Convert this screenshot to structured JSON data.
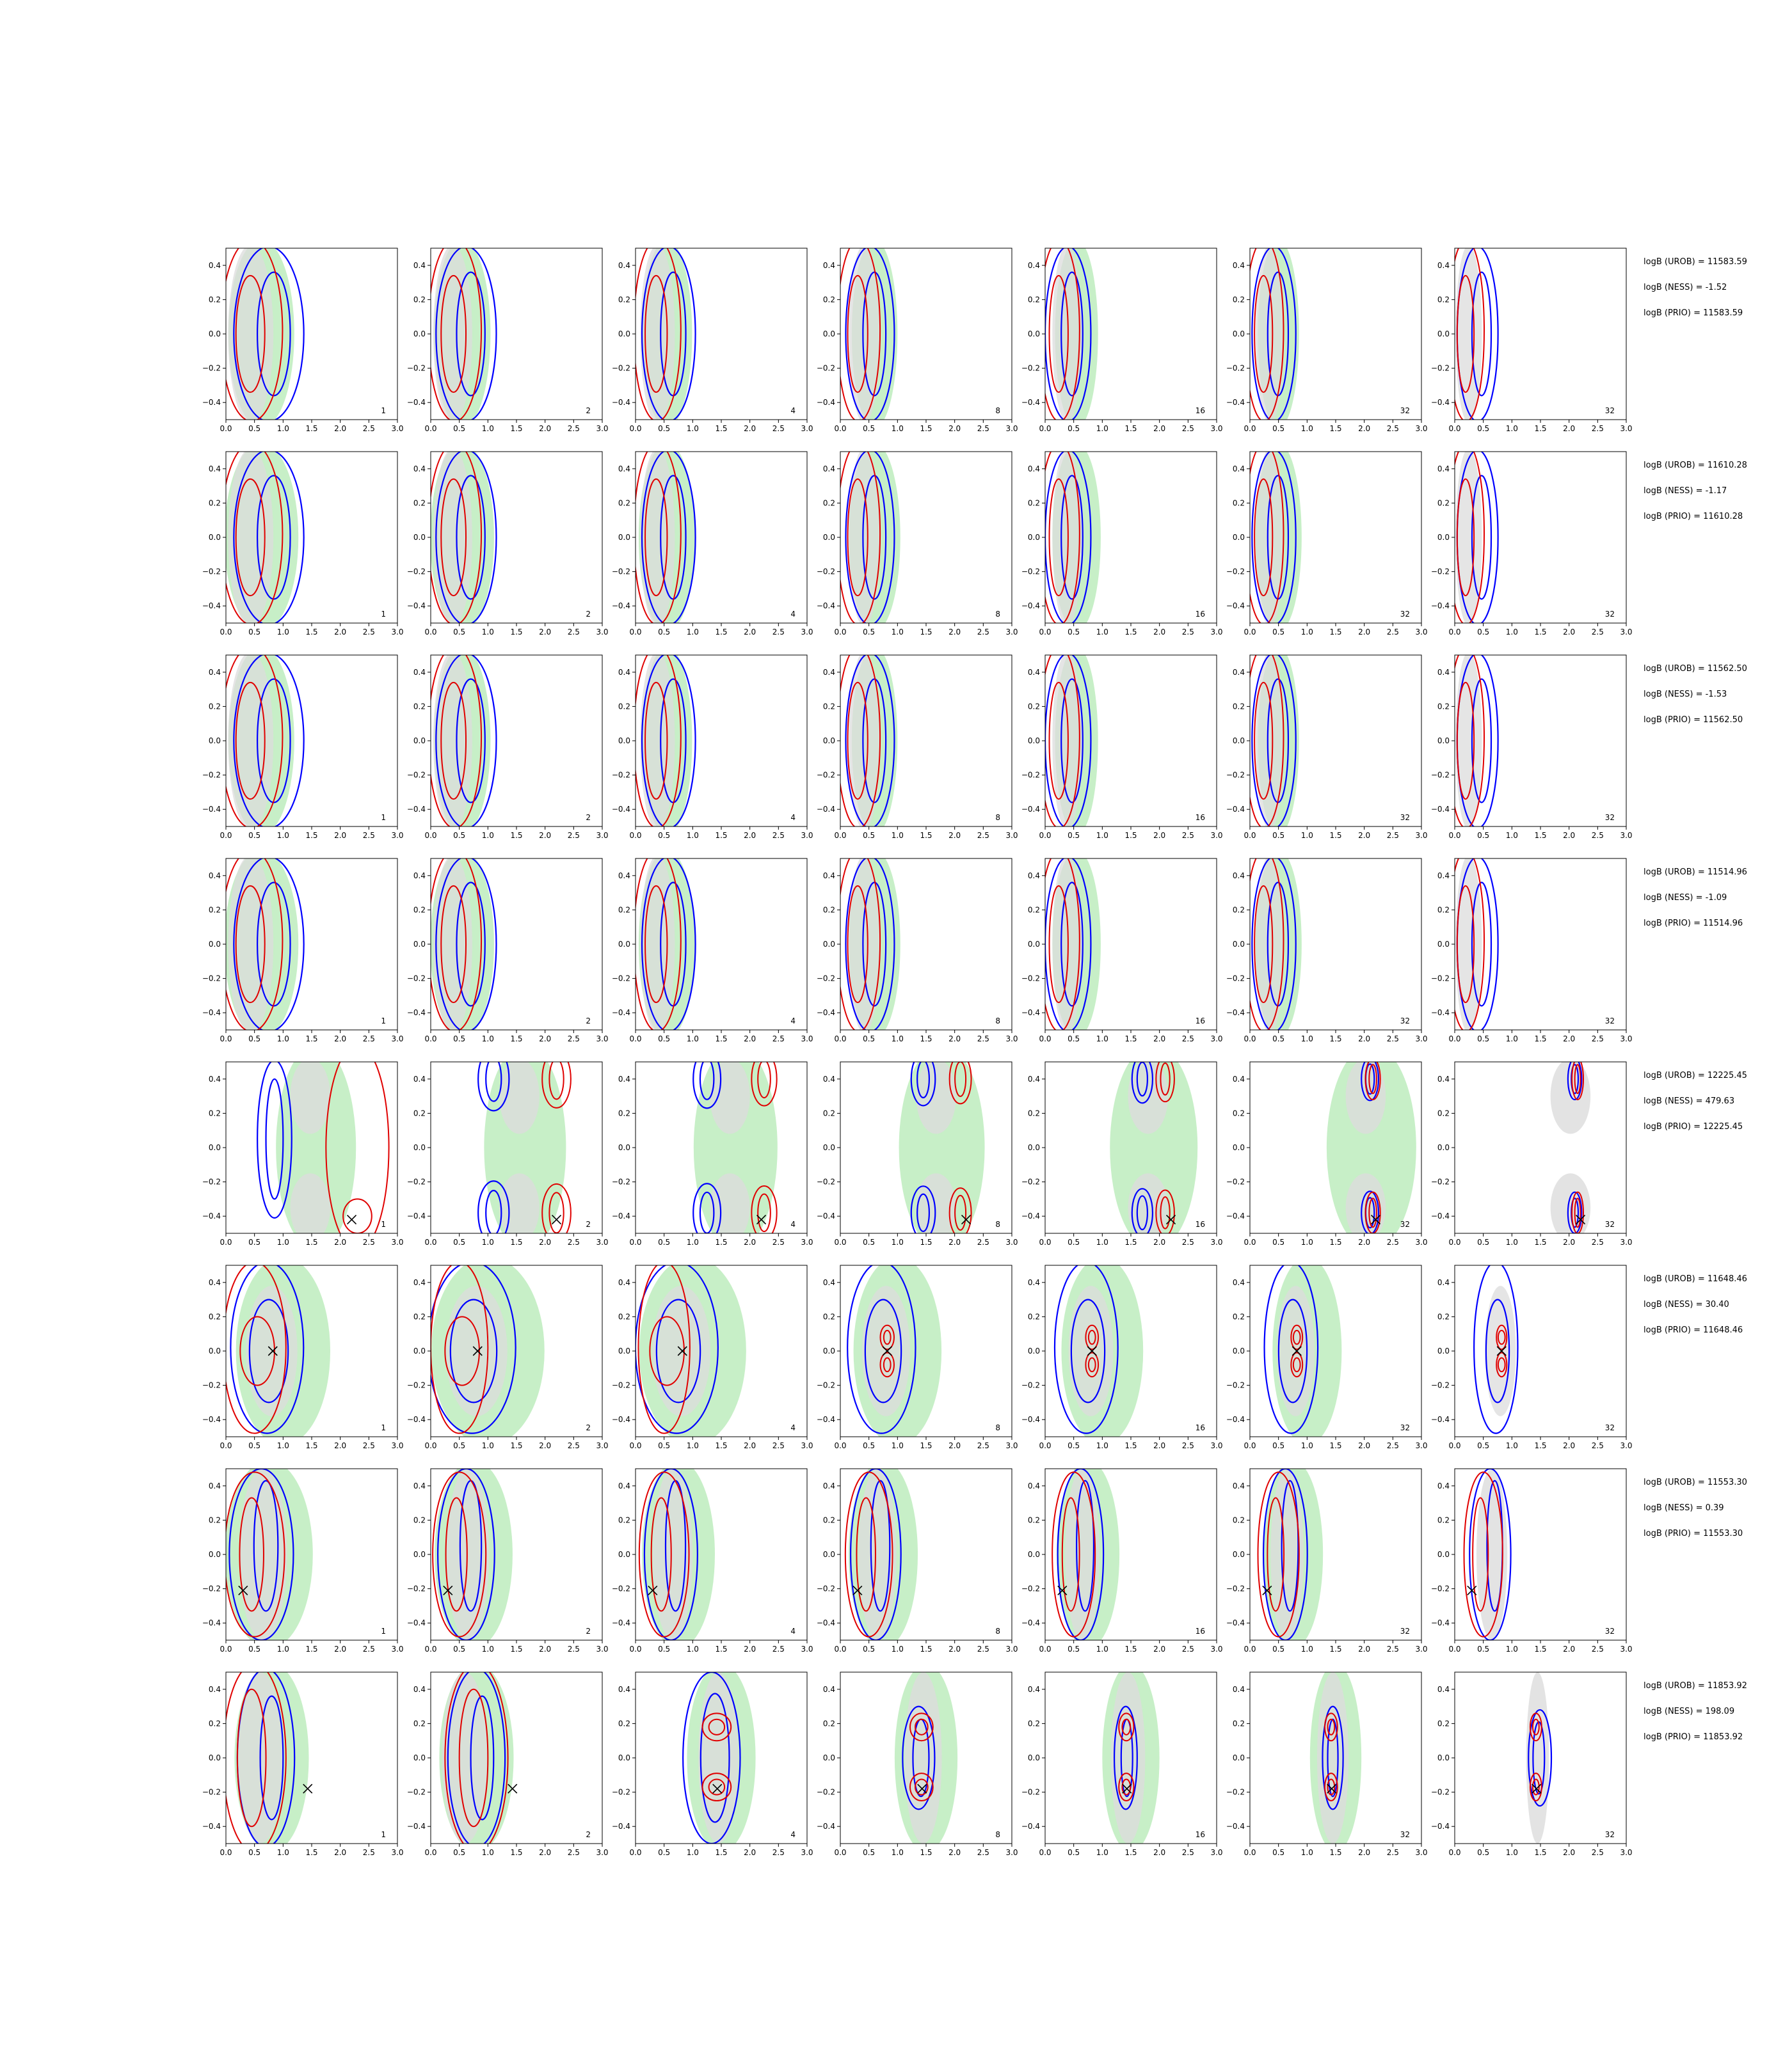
{
  "chart_data": {
    "type": "contour-grid",
    "n_rows": 8,
    "columns": [
      "1",
      "2",
      "4",
      "8",
      "16",
      "32",
      "32"
    ],
    "xlim": [
      0.0,
      3.0
    ],
    "ylim": [
      -0.5,
      0.5
    ],
    "x_ticks": [
      "0.0",
      "0.5",
      "1.0",
      "1.5",
      "2.0",
      "2.5",
      "3.0"
    ],
    "y_ticks": [
      "0.4",
      "0.2",
      "0.0",
      "−0.2",
      "−0.4"
    ],
    "y_tick_values": [
      0.4,
      0.2,
      0.0,
      -0.2,
      -0.4
    ],
    "x_tick_values": [
      0.0,
      0.5,
      1.0,
      1.5,
      2.0,
      2.5,
      3.0
    ],
    "colors": {
      "blue": "#0000ff",
      "red": "#e00000",
      "green": "#c7efc7",
      "grey": "#dcdcdc"
    },
    "rows": [
      {
        "marker": null,
        "annotations": [
          "logB (UROB) = 11583.59",
          "logB (NESS) = -1.52",
          "logB (PRIO) = 11583.59"
        ]
      },
      {
        "marker": null,
        "annotations": [
          "logB (UROB) = 11610.28",
          "logB (NESS) = -1.17",
          "logB (PRIO) = 11610.28"
        ]
      },
      {
        "marker": null,
        "annotations": [
          "logB (UROB) = 11562.50",
          "logB (NESS) = -1.53",
          "logB (PRIO) = 11562.50"
        ]
      },
      {
        "marker": null,
        "annotations": [
          "logB (UROB) = 11514.96",
          "logB (NESS) = -1.09",
          "logB (PRIO) = 11514.96"
        ]
      },
      {
        "marker": [
          2.2,
          -0.42
        ],
        "annotations": [
          "logB (UROB) = 12225.45",
          "logB (NESS) = 479.63",
          "logB (PRIO) = 12225.45"
        ]
      },
      {
        "marker": [
          0.82,
          0.0
        ],
        "annotations": [
          "logB (UROB) = 11648.46",
          "logB (NESS) = 30.40",
          "logB (PRIO) = 11648.46"
        ]
      },
      {
        "marker": [
          0.3,
          -0.21
        ],
        "annotations": [
          "logB (UROB) = 11553.30",
          "logB (NESS) = 0.39",
          "logB (PRIO) = 11553.30"
        ]
      },
      {
        "marker": [
          1.43,
          -0.18
        ],
        "annotations": [
          "logB (UROB) = 11853.92",
          "logB (NESS) = 198.09",
          "logB (PRIO) = 11853.92"
        ]
      }
    ]
  }
}
